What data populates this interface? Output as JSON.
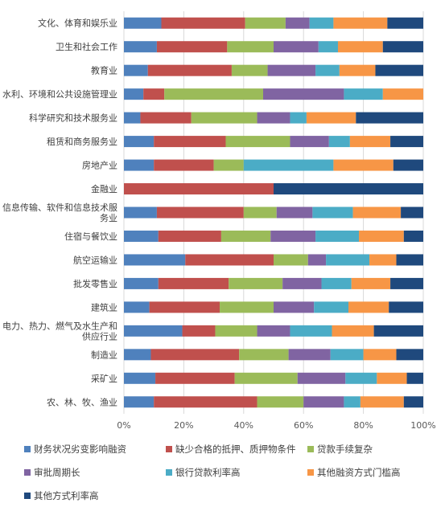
{
  "chart_data": {
    "type": "bar",
    "stacked": true,
    "orientation": "horizontal",
    "percent_stacked": true,
    "categories": [
      "文化、体育和娱乐业",
      "卫生和社会工作",
      "教育业",
      "水利、环境和公共设施管理业",
      "科学研究和技术服务业",
      "租赁和商务服务业",
      "房地产业",
      "金融业",
      "信息传输、软件和信息技术服务业",
      "住宿与餐饮业",
      "航空运输业",
      "批发零售业",
      "建筑业",
      "电力、热力、燃气及水生产和供应行业",
      "制造业",
      "采矿业",
      "农、林、牧、渔业"
    ],
    "category_lines": [
      [
        "文化、体育和娱乐业"
      ],
      [
        "卫生和社会工作"
      ],
      [
        "教育业"
      ],
      [
        "水利、环境和公共设施管理业"
      ],
      [
        "科学研究和技术服务业"
      ],
      [
        "租赁和商务服务业"
      ],
      [
        "房地产业"
      ],
      [
        "金融业"
      ],
      [
        "信息传输、软件和信息技术服",
        "务业"
      ],
      [
        "住宿与餐饮业"
      ],
      [
        "航空运输业"
      ],
      [
        "批发零售业"
      ],
      [
        "建筑业"
      ],
      [
        "电力、热力、燃气及水生产和",
        "供应行业"
      ],
      [
        "制造业"
      ],
      [
        "采矿业"
      ],
      [
        "农、林、牧、渔业"
      ]
    ],
    "series": [
      {
        "name": "财务状况劣变影响融资",
        "color": "#4F81BD",
        "values": [
          12.5,
          11,
          8,
          6.5,
          5.5,
          10,
          10,
          0,
          11,
          11.5,
          20.5,
          11.5,
          8.5,
          19.5,
          9,
          10.5,
          10
        ]
      },
      {
        "name": "缺少合格的抵押、质押物条件",
        "color": "#C0504D",
        "values": [
          28,
          23.5,
          28,
          7,
          17,
          24,
          20,
          50,
          29,
          21,
          29.5,
          23.5,
          23.5,
          11,
          29.5,
          26.5,
          34.5
        ]
      },
      {
        "name": "贷款手续复杂",
        "color": "#9BBB59",
        "values": [
          13.5,
          15.5,
          12,
          33,
          22,
          21.5,
          10,
          0,
          11,
          16.5,
          11.5,
          18,
          18,
          14,
          16.5,
          21,
          15.5
        ]
      },
      {
        "name": "审批周期长",
        "color": "#8064A2",
        "values": [
          8,
          15,
          16,
          27,
          11,
          13,
          0,
          0,
          12,
          15,
          6,
          13,
          13.5,
          11,
          14,
          16,
          13.5
        ]
      },
      {
        "name": "银行贷款利率高",
        "color": "#4BACC6",
        "values": [
          8,
          6.5,
          8,
          13,
          5.5,
          7,
          30,
          0,
          13.5,
          14.5,
          14.5,
          10,
          11.5,
          14,
          11,
          10.5,
          5.5
        ]
      },
      {
        "name": "其他融资方式门槛高",
        "color": "#F79646",
        "values": [
          18,
          15,
          12,
          13.5,
          16.5,
          13.5,
          20,
          0,
          16,
          15,
          9,
          13,
          13.5,
          14,
          11,
          10,
          14.5
        ]
      },
      {
        "name": "其他方式利率高",
        "color": "#1F497D",
        "values": [
          12,
          13.5,
          16,
          0,
          22.5,
          11,
          10,
          50,
          7.5,
          6.5,
          9,
          11,
          11.5,
          16.5,
          9,
          5.5,
          6.5
        ]
      }
    ],
    "x_ticks": [
      "0%",
      "20%",
      "40%",
      "60%",
      "80%",
      "100%"
    ],
    "xlim": [
      0,
      100
    ],
    "title": "",
    "xlabel": "",
    "ylabel": "",
    "grid": "vertical",
    "legend_position": "bottom"
  }
}
